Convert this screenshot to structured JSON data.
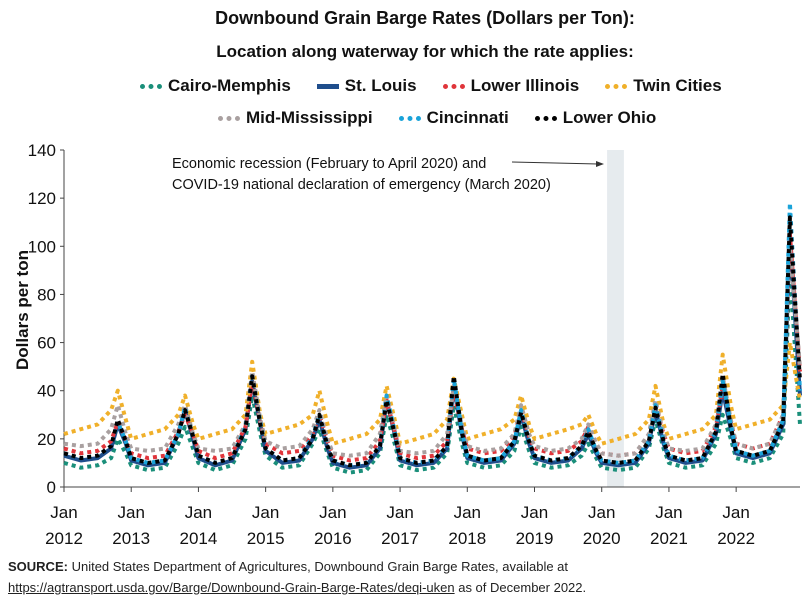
{
  "chart_data": {
    "type": "line",
    "title": "Downbound Grain Barge Rates (Dollars per Ton):",
    "subtitle": "Location along waterway for which the rate applies:",
    "ylabel": "Dollars per ton",
    "xlabel": "",
    "ylim": [
      0,
      140
    ],
    "yticks": [
      0,
      20,
      40,
      60,
      80,
      100,
      120,
      140
    ],
    "xlim": [
      2012.0,
      2022.95
    ],
    "xtick_labels": [
      [
        "Jan",
        "2012"
      ],
      [
        "Jan",
        "2013"
      ],
      [
        "Jan",
        "2014"
      ],
      [
        "Jan",
        "2015"
      ],
      [
        "Jan",
        "2016"
      ],
      [
        "Jan",
        "2017"
      ],
      [
        "Jan",
        "2018"
      ],
      [
        "Jan",
        "2019"
      ],
      [
        "Jan",
        "2020"
      ],
      [
        "Jan",
        "2021"
      ],
      [
        "Jan",
        "2022"
      ]
    ],
    "legend_position": "top",
    "shaded_period": {
      "x0": 2020.08,
      "x1": 2020.33
    },
    "annotation": {
      "line1": "Economic recession (February to April 2020) and",
      "line2": "COVID-19 national declaration of emergency (March 2020)"
    },
    "x": [
      2012.0,
      2012.25,
      2012.5,
      2012.7,
      2012.8,
      2012.92,
      2013.0,
      2013.25,
      2013.5,
      2013.7,
      2013.8,
      2013.92,
      2014.0,
      2014.25,
      2014.5,
      2014.7,
      2014.8,
      2014.92,
      2015.0,
      2015.25,
      2015.5,
      2015.7,
      2015.8,
      2015.92,
      2016.0,
      2016.25,
      2016.5,
      2016.7,
      2016.8,
      2016.92,
      2017.0,
      2017.25,
      2017.5,
      2017.7,
      2017.8,
      2017.92,
      2018.0,
      2018.25,
      2018.5,
      2018.7,
      2018.8,
      2018.92,
      2019.0,
      2019.25,
      2019.5,
      2019.7,
      2019.8,
      2019.92,
      2020.0,
      2020.25,
      2020.5,
      2020.7,
      2020.8,
      2020.92,
      2021.0,
      2021.25,
      2021.5,
      2021.7,
      2021.8,
      2021.92,
      2022.0,
      2022.25,
      2022.5,
      2022.7,
      2022.8,
      2022.95
    ],
    "series": [
      {
        "name": "Cairo-Memphis",
        "color": "#1a8f7a",
        "style": "dotted",
        "values": [
          10,
          8,
          9,
          12,
          20,
          14,
          9,
          7,
          8,
          18,
          25,
          16,
          10,
          7,
          9,
          20,
          38,
          22,
          13,
          8,
          9,
          18,
          24,
          14,
          8,
          6,
          7,
          14,
          30,
          18,
          9,
          7,
          8,
          14,
          34,
          18,
          10,
          8,
          9,
          15,
          25,
          15,
          10,
          8,
          9,
          13,
          18,
          12,
          8,
          7,
          8,
          16,
          28,
          16,
          10,
          8,
          9,
          18,
          30,
          20,
          12,
          10,
          12,
          22,
          90,
          26
        ]
      },
      {
        "name": "St. Louis",
        "color": "#1f4e8c",
        "style": "solid",
        "values": [
          13,
          11,
          12,
          16,
          26,
          18,
          11,
          9,
          10,
          22,
          32,
          20,
          12,
          9,
          11,
          24,
          44,
          26,
          15,
          10,
          11,
          20,
          28,
          16,
          10,
          8,
          9,
          16,
          36,
          22,
          11,
          9,
          10,
          16,
          42,
          22,
          12,
          10,
          11,
          18,
          30,
          18,
          12,
          10,
          11,
          16,
          22,
          14,
          10,
          9,
          10,
          18,
          32,
          18,
          12,
          10,
          11,
          22,
          40,
          24,
          14,
          12,
          14,
          26,
          105,
          38
        ]
      },
      {
        "name": "Lower Illinois",
        "color": "#e0353b",
        "style": "dotted",
        "values": [
          16,
          14,
          15,
          19,
          27,
          20,
          14,
          12,
          13,
          23,
          30,
          22,
          15,
          12,
          14,
          25,
          44,
          27,
          18,
          14,
          15,
          22,
          30,
          19,
          13,
          11,
          12,
          19,
          36,
          23,
          14,
          12,
          13,
          19,
          40,
          24,
          16,
          14,
          15,
          21,
          32,
          21,
          16,
          14,
          15,
          19,
          25,
          18,
          14,
          13,
          14,
          21,
          34,
          22,
          16,
          14,
          15,
          25,
          42,
          27,
          18,
          16,
          18,
          30,
          105,
          48
        ]
      },
      {
        "name": "Twin Cities",
        "color": "#f0b02a",
        "style": "dotted",
        "values": [
          22,
          24,
          26,
          32,
          40,
          28,
          20,
          22,
          24,
          30,
          38,
          26,
          20,
          22,
          24,
          30,
          52,
          30,
          22,
          24,
          26,
          30,
          40,
          26,
          18,
          20,
          22,
          28,
          42,
          28,
          18,
          20,
          22,
          28,
          45,
          30,
          20,
          22,
          24,
          28,
          38,
          26,
          20,
          22,
          24,
          26,
          30,
          22,
          18,
          20,
          22,
          28,
          42,
          26,
          20,
          22,
          24,
          30,
          55,
          34,
          24,
          26,
          28,
          34,
          60,
          36
        ]
      },
      {
        "name": "Mid-Mississippi",
        "color": "#a9a0a0",
        "style": "dotted",
        "values": [
          18,
          17,
          18,
          24,
          34,
          22,
          16,
          15,
          16,
          26,
          34,
          22,
          16,
          15,
          16,
          26,
          48,
          28,
          19,
          16,
          17,
          24,
          32,
          20,
          14,
          13,
          14,
          22,
          38,
          24,
          15,
          14,
          15,
          22,
          42,
          26,
          17,
          15,
          16,
          22,
          34,
          22,
          17,
          15,
          16,
          20,
          26,
          18,
          14,
          13,
          14,
          22,
          36,
          22,
          16,
          15,
          16,
          26,
          46,
          28,
          18,
          16,
          18,
          30,
          100,
          50
        ]
      },
      {
        "name": "Cincinnati",
        "color": "#1aa3d9",
        "style": "dotted",
        "values": [
          14,
          12,
          13,
          17,
          27,
          19,
          12,
          10,
          11,
          22,
          33,
          21,
          13,
          10,
          12,
          25,
          46,
          27,
          16,
          11,
          12,
          21,
          30,
          17,
          11,
          9,
          10,
          17,
          38,
          23,
          12,
          10,
          11,
          17,
          45,
          23,
          13,
          11,
          12,
          19,
          32,
          19,
          13,
          11,
          12,
          17,
          24,
          15,
          11,
          10,
          11,
          19,
          34,
          19,
          13,
          11,
          12,
          23,
          44,
          26,
          15,
          13,
          15,
          28,
          118,
          40
        ]
      },
      {
        "name": "Lower Ohio",
        "color": "#000000",
        "style": "dotted",
        "values": [
          14,
          12,
          13,
          17,
          28,
          19,
          12,
          10,
          11,
          22,
          32,
          21,
          13,
          10,
          12,
          24,
          46,
          26,
          16,
          11,
          12,
          20,
          30,
          17,
          11,
          9,
          10,
          17,
          36,
          22,
          12,
          10,
          11,
          17,
          46,
          23,
          13,
          11,
          12,
          19,
          31,
          19,
          13,
          11,
          12,
          17,
          23,
          15,
          11,
          10,
          11,
          19,
          33,
          19,
          13,
          11,
          12,
          23,
          47,
          25,
          15,
          13,
          15,
          27,
          112,
          44
        ]
      }
    ]
  },
  "legend": {
    "row1": [
      {
        "label": "Cairo-Memphis",
        "color": "#1a8f7a",
        "style": "dotted"
      },
      {
        "label": "St. Louis",
        "color": "#1f4e8c",
        "style": "solid"
      },
      {
        "label": "Lower Illinois",
        "color": "#e0353b",
        "style": "dotted"
      },
      {
        "label": "Twin Cities",
        "color": "#f0b02a",
        "style": "dotted"
      }
    ],
    "row2": [
      {
        "label": "Mid-Mississippi",
        "color": "#a9a0a0",
        "style": "dotted"
      },
      {
        "label": "Cincinnati",
        "color": "#1aa3d9",
        "style": "dotted"
      },
      {
        "label": "Lower Ohio",
        "color": "#000000",
        "style": "dotted"
      }
    ]
  },
  "source": {
    "label": "SOURCE:",
    "text": "United States Department of Agricultures, Downbound Grain Barge Rates, available at",
    "link": "https://agtransport.usda.gov/Barge/Downbound-Grain-Barge-Rates/deqi-uken",
    "suffix": "as of December 2022."
  }
}
